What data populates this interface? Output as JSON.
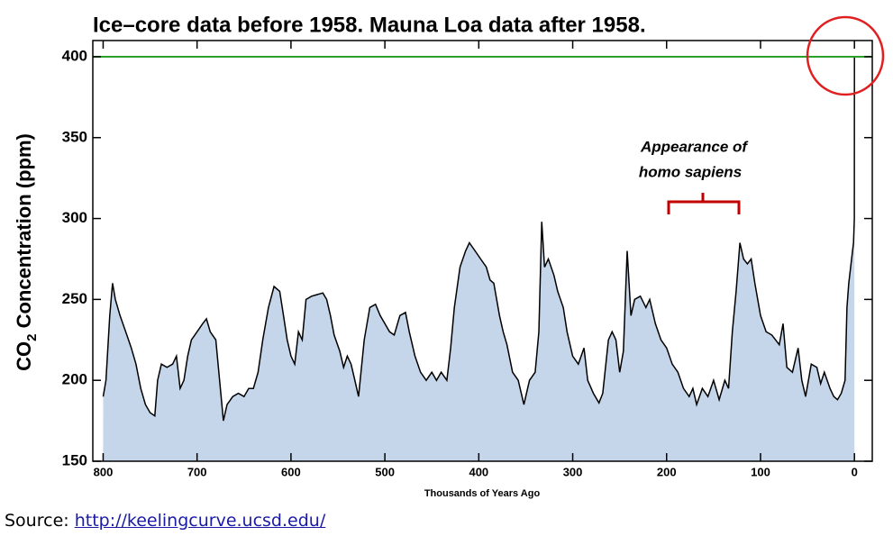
{
  "chart_data": {
    "type": "area",
    "title": "Ice–core data before 1958. Mauna Loa data after 1958.",
    "y_label": {
      "prefix": "CO",
      "subscript": "2",
      "suffix": " Concentration (ppm)"
    },
    "x_label": "Thousands of Years Ago",
    "annotation": [
      "Appearance of",
      "homo sapiens"
    ],
    "color": "#c5d5ea",
    "line_color": "#000000",
    "reference_line": {
      "value": 400,
      "color": "#2ca02c"
    },
    "xlim": [
      811,
      -19
    ],
    "xticks": [
      800,
      700,
      600,
      500,
      400,
      300,
      200,
      100,
      0
    ],
    "ylim": [
      150,
      410
    ],
    "yticks": [
      150,
      200,
      250,
      300,
      350,
      400
    ],
    "x": [
      800,
      797,
      793,
      790,
      787,
      782,
      776,
      770,
      765,
      760,
      755,
      750,
      745,
      742,
      738,
      732,
      726,
      722,
      718,
      714,
      710,
      706,
      700,
      694,
      690,
      686,
      680,
      676,
      672,
      668,
      662,
      656,
      650,
      645,
      640,
      635,
      630,
      624,
      618,
      612,
      608,
      604,
      600,
      596,
      592,
      588,
      584,
      578,
      572,
      566,
      562,
      558,
      554,
      548,
      544,
      540,
      536,
      532,
      528,
      522,
      516,
      510,
      505,
      500,
      495,
      490,
      484,
      478,
      474,
      468,
      462,
      456,
      450,
      445,
      440,
      434,
      430,
      426,
      420,
      414,
      410,
      404,
      398,
      392,
      388,
      384,
      378,
      374,
      370,
      364,
      358,
      352,
      346,
      340,
      336,
      333,
      330,
      326,
      320,
      316,
      310,
      306,
      300,
      294,
      288,
      284,
      278,
      272,
      268,
      262,
      258,
      254,
      250,
      246,
      242,
      238,
      234,
      228,
      222,
      218,
      212,
      206,
      200,
      194,
      188,
      182,
      176,
      172,
      168,
      162,
      156,
      150,
      144,
      138,
      134,
      130,
      126,
      122,
      118,
      114,
      110,
      106,
      100,
      94,
      88,
      84,
      80,
      76,
      72,
      66,
      60,
      56,
      52,
      46,
      40,
      36,
      32,
      26,
      22,
      18,
      14,
      10,
      8,
      6,
      4,
      2,
      1,
      0.1,
      0
    ],
    "values": [
      190,
      200,
      240,
      260,
      250,
      240,
      230,
      220,
      210,
      195,
      185,
      180,
      178,
      200,
      210,
      208,
      210,
      215,
      195,
      200,
      215,
      225,
      230,
      235,
      238,
      230,
      225,
      200,
      175,
      185,
      190,
      192,
      190,
      195,
      195,
      205,
      225,
      245,
      258,
      255,
      240,
      225,
      215,
      210,
      230,
      225,
      250,
      252,
      253,
      254,
      250,
      240,
      228,
      218,
      208,
      215,
      210,
      200,
      190,
      225,
      245,
      247,
      240,
      235,
      230,
      228,
      240,
      242,
      230,
      215,
      205,
      200,
      205,
      200,
      205,
      200,
      220,
      245,
      270,
      280,
      285,
      280,
      275,
      270,
      262,
      260,
      240,
      230,
      222,
      205,
      200,
      185,
      200,
      205,
      230,
      298,
      270,
      275,
      265,
      255,
      245,
      230,
      215,
      210,
      220,
      200,
      192,
      186,
      192,
      225,
      230,
      225,
      205,
      218,
      280,
      240,
      250,
      252,
      245,
      250,
      235,
      225,
      220,
      210,
      205,
      195,
      190,
      195,
      185,
      195,
      190,
      200,
      188,
      200,
      195,
      230,
      255,
      285,
      275,
      272,
      275,
      260,
      240,
      230,
      228,
      225,
      222,
      235,
      208,
      205,
      220,
      200,
      190,
      210,
      208,
      198,
      205,
      195,
      190,
      188,
      192,
      200,
      245,
      260,
      270,
      280,
      285,
      300,
      400
    ]
  },
  "source": {
    "label": "Source: ",
    "link": "http://keelingcurve.ucsd.edu/"
  }
}
